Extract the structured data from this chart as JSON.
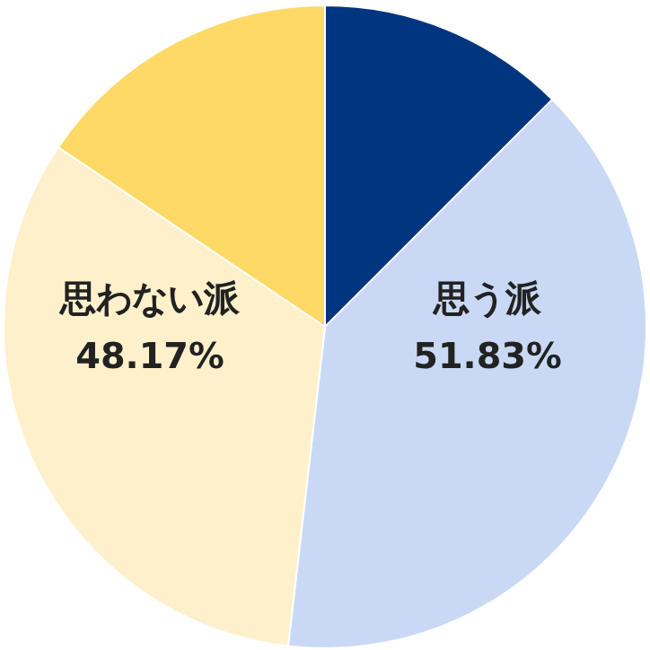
{
  "chart_data": {
    "type": "pie",
    "categories": [
      null,
      null,
      null,
      null
    ],
    "values": [
      12.5,
      39.33,
      32.6,
      15.57
    ],
    "colors": [
      "#003580",
      "#c9d9f5",
      "#fff0cc",
      "#ffd966"
    ],
    "annotations": [
      "思う派\n51.83%",
      "思わない派\n48.17%"
    ],
    "legend": false
  }
}
